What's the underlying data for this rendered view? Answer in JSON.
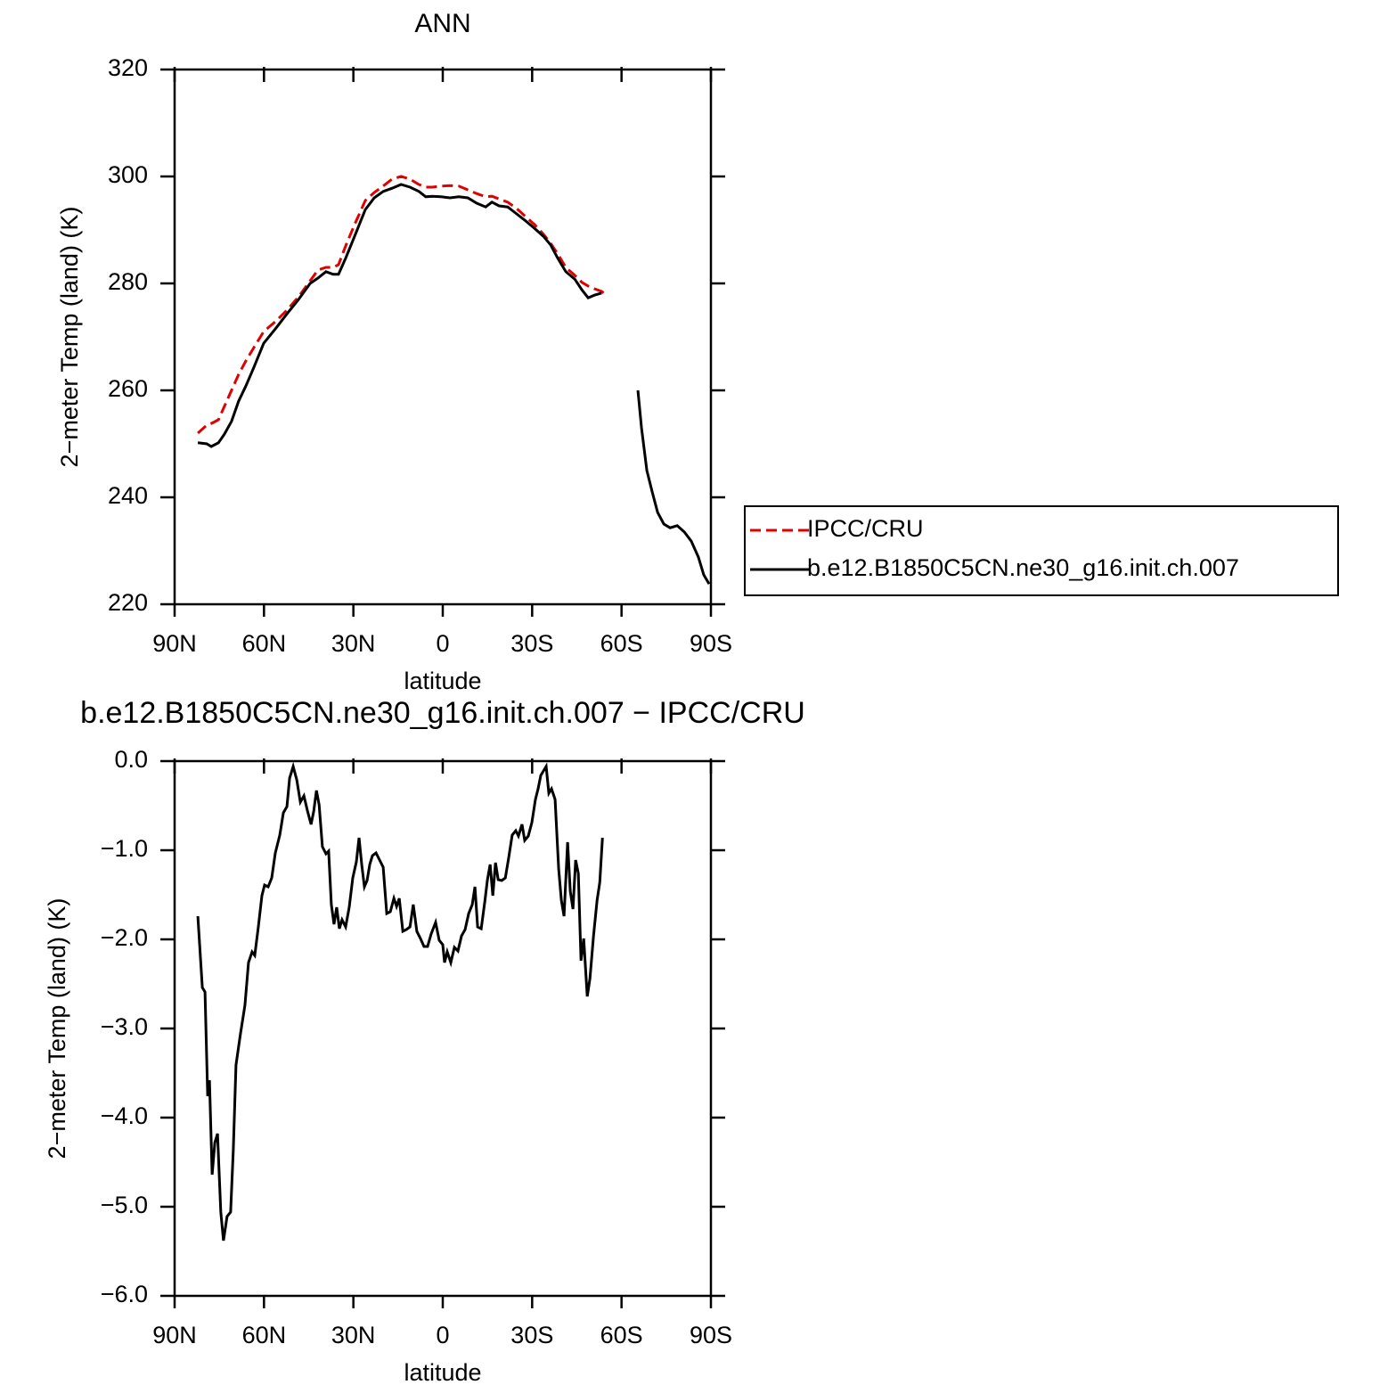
{
  "chart_data": [
    {
      "type": "line",
      "title": "ANN",
      "xlabel": "latitude",
      "ylabel": "2−meter Temp (land) (K)",
      "xlim": [
        90,
        -90
      ],
      "xticks": [
        {
          "value": 90,
          "label": "90N"
        },
        {
          "value": 60,
          "label": "60N"
        },
        {
          "value": 30,
          "label": "30N"
        },
        0,
        {
          "value": -30,
          "label": "30S"
        },
        {
          "value": -60,
          "label": "60S"
        },
        {
          "value": -90,
          "label": "90S"
        }
      ],
      "ylim": [
        220,
        320
      ],
      "yticks": [
        220,
        240,
        260,
        280,
        300,
        320
      ],
      "legend": "right",
      "x": [
        82.2,
        79.2,
        77.7,
        75.3,
        73.3,
        70.9,
        68.5,
        66.1,
        63.4,
        60.1,
        55.9,
        52.3,
        48.4,
        44.5,
        41.9,
        39.2,
        36.8,
        35,
        32.6,
        29.6,
        26,
        23,
        20,
        17,
        14,
        11,
        8,
        5.7,
        3.6,
        0.6,
        -2.4,
        -5.4,
        -8.4,
        -11.4,
        -14.4,
        -16.5,
        -18.9,
        -21.8,
        -24.8,
        -27.8,
        -30.8,
        -33.8,
        -36.2,
        -38.6,
        -41.3,
        -44.3,
        -46.7,
        -48.8,
        -50.9,
        -53.3,
        -55,
        -60,
        -65.5,
        -66.7,
        -68.5,
        -70.3,
        -72.1,
        -74.2,
        -76.3,
        -78.7,
        -81.1,
        -83.4,
        -85.8,
        -87.6,
        -89.4
      ],
      "series": [
        {
          "name": "IPCC/CRU",
          "color": "#e00000",
          "linestyle": "dashed",
          "values": [
            252,
            253.5,
            253.8,
            254.5,
            257,
            260,
            263,
            265.5,
            268,
            271,
            273,
            275,
            277.5,
            280.5,
            282.5,
            283,
            283,
            283.5,
            287,
            291,
            295.5,
            297,
            298.2,
            299.5,
            300,
            299.5,
            298.5,
            298,
            298,
            298.2,
            298.3,
            298.2,
            297.5,
            296.8,
            296.2,
            296.3,
            295.8,
            295.2,
            294,
            292.5,
            291,
            289.2,
            287.5,
            285.5,
            283,
            281.5,
            280.2,
            279.5,
            279,
            278.5,
            277.8,
            null,
            null,
            null,
            null,
            null,
            null,
            null,
            null,
            null,
            null,
            null,
            null,
            null,
            null
          ]
        },
        {
          "name": "b.e12.B1850C5CN.ne30_g16.init.ch.007",
          "color": "#000000",
          "linestyle": "solid",
          "values": [
            250.2,
            250,
            249.5,
            250.2,
            251.8,
            254.2,
            258,
            260.8,
            264.3,
            268.8,
            271.7,
            274.3,
            277,
            280,
            281,
            282.2,
            281.7,
            281.7,
            284.7,
            288.8,
            293.8,
            296,
            297.2,
            297.8,
            298.5,
            298,
            297.2,
            296.2,
            296.3,
            296.2,
            296,
            296.2,
            296,
            295,
            294.3,
            295.2,
            294.5,
            294.3,
            293,
            291.7,
            290.3,
            288.8,
            287.2,
            284.7,
            282.2,
            280.8,
            278.8,
            277.3,
            277.8,
            278.2,
            null,
            null,
            260,
            253,
            245,
            241,
            237.2,
            235,
            234.3,
            234.7,
            233.5,
            231.8,
            228.8,
            225.5,
            223.8
          ]
        }
      ]
    },
    {
      "type": "line",
      "title": "b.e12.B1850C5CN.ne30_g16.init.ch.007 − IPCC/CRU",
      "xlabel": "latitude",
      "ylabel": "2−meter Temp (land) (K)",
      "xlim": [
        90,
        -90
      ],
      "xticks": [
        {
          "value": 90,
          "label": "90N"
        },
        {
          "value": 60,
          "label": "60N"
        },
        {
          "value": 30,
          "label": "30N"
        },
        0,
        {
          "value": -30,
          "label": "30S"
        },
        {
          "value": -60,
          "label": "60S"
        },
        {
          "value": -90,
          "label": "90S"
        }
      ],
      "ylim": [
        -6,
        0
      ],
      "yticks": [
        {
          "value": -6,
          "label": "−6.0"
        },
        {
          "value": -5,
          "label": "−5.0"
        },
        {
          "value": -4,
          "label": "−4.0"
        },
        {
          "value": -3,
          "label": "−3.0"
        },
        {
          "value": -2,
          "label": "−2.0"
        },
        {
          "value": -1,
          "label": "−1.0"
        },
        {
          "value": 0,
          "label": "0.0"
        }
      ],
      "x": [
        82.2,
        80.7,
        79.8,
        78.9,
        78.3,
        77.4,
        76.5,
        75.6,
        74.5,
        73.6,
        72.4,
        71.2,
        70.3,
        69.4,
        67.9,
        66.4,
        65.2,
        64,
        63.1,
        61.9,
        60.7,
        59.8,
        58.6,
        57.4,
        56.2,
        54.7,
        53.5,
        52.3,
        51.4,
        50.2,
        49,
        47.8,
        46.6,
        45.4,
        44.2,
        43.3,
        42.4,
        41.5,
        40.4,
        39.2,
        38.3,
        37.4,
        36.5,
        35.6,
        34.7,
        33.8,
        32.6,
        31.4,
        30.2,
        29,
        28.1,
        27.2,
        26.3,
        25.4,
        24.5,
        23.6,
        22.4,
        21.2,
        20,
        18.8,
        17.6,
        16.4,
        15.5,
        14.6,
        13.4,
        12.2,
        11,
        9.9,
        8.7,
        7.5,
        6.3,
        5.1,
        3.9,
        2.4,
        1.2,
        0,
        -0.6,
        -1.5,
        -2.7,
        -3.9,
        -5.1,
        -6.3,
        -7.5,
        -8.7,
        -9.9,
        -10.8,
        -11.7,
        -12.9,
        -14.1,
        -15,
        -15.9,
        -16.8,
        -17.7,
        -18.6,
        -19.8,
        -21,
        -22.1,
        -23.3,
        -24.5,
        -25.4,
        -26.6,
        -27.5,
        -28.7,
        -29.9,
        -31.1,
        -32,
        -32.9,
        -33.8,
        -34.7,
        -35.6,
        -36.5,
        -37.7,
        -38.9,
        -39.8,
        -40.7,
        -41.9,
        -42.8,
        -43.7,
        -44.6,
        -45.5,
        -46.4,
        -47.3,
        -48.5,
        -49.4,
        -50.6,
        -51.8,
        -52.7,
        -53.6
      ],
      "series": [
        {
          "color": "#000000",
          "linestyle": "solid",
          "values": [
            -1.74,
            -2.54,
            -2.59,
            -3.76,
            -3.58,
            -4.64,
            -4.28,
            -4.18,
            -5.06,
            -5.38,
            -5.11,
            -5.06,
            -4.36,
            -3.41,
            -3.06,
            -2.74,
            -2.26,
            -2.14,
            -2.18,
            -1.86,
            -1.51,
            -1.39,
            -1.41,
            -1.31,
            -1.03,
            -0.83,
            -0.58,
            -0.51,
            -0.19,
            -0.06,
            -0.21,
            -0.46,
            -0.39,
            -0.56,
            -0.71,
            -0.56,
            -0.33,
            -0.49,
            -0.96,
            -1.04,
            -1.01,
            -1.61,
            -1.83,
            -1.64,
            -1.88,
            -1.78,
            -1.86,
            -1.64,
            -1.31,
            -1.13,
            -0.86,
            -1.16,
            -1.41,
            -1.34,
            -1.16,
            -1.06,
            -1.03,
            -1.11,
            -1.19,
            -1.71,
            -1.69,
            -1.54,
            -1.63,
            -1.54,
            -1.91,
            -1.89,
            -1.86,
            -1.61,
            -1.91,
            -1.99,
            -2.08,
            -2.08,
            -1.94,
            -1.81,
            -2.01,
            -2.06,
            -2.26,
            -2.14,
            -2.26,
            -2.09,
            -2.13,
            -1.96,
            -1.89,
            -1.71,
            -1.61,
            -1.41,
            -1.86,
            -1.88,
            -1.58,
            -1.33,
            -1.16,
            -1.51,
            -1.14,
            -1.33,
            -1.34,
            -1.31,
            -1.09,
            -0.83,
            -0.78,
            -0.84,
            -0.71,
            -0.89,
            -0.84,
            -0.69,
            -0.43,
            -0.31,
            -0.16,
            -0.11,
            -0.06,
            -0.36,
            -0.31,
            -0.43,
            -1.21,
            -1.56,
            -1.74,
            -0.91,
            -1.46,
            -1.66,
            -1.11,
            -1.26,
            -2.24,
            -1.99,
            -2.64,
            -2.44,
            -1.96,
            -1.56,
            -1.36,
            -0.86
          ]
        }
      ]
    }
  ]
}
